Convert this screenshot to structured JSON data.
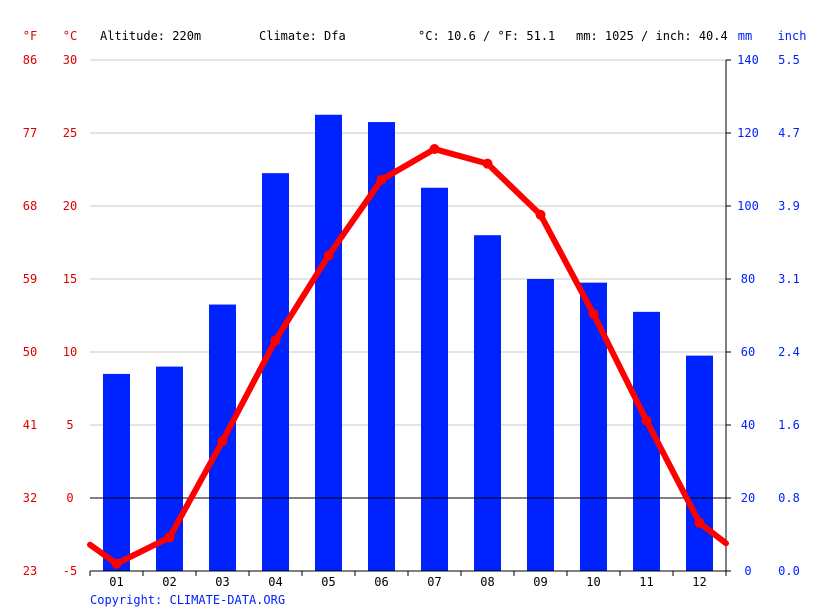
{
  "header": {
    "unit_f": "°F",
    "unit_c": "°C",
    "altitude": "Altitude: 220m",
    "climate": "Climate: Dfa",
    "temp_summary": "°C: 10.6 / °F: 51.1",
    "precip_summary": "mm: 1025 / inch: 40.4",
    "unit_mm": "mm",
    "unit_inch": "inch"
  },
  "footer": {
    "copyright": "Copyright: CLIMATE-DATA.ORG"
  },
  "colors": {
    "temperature": "#ff0000",
    "precipitation": "#0022ff",
    "left_axis_text": "#e00000",
    "right_axis_text": "#0022ff",
    "grid": "#c8c8c8",
    "zero_line": "#000000"
  },
  "chart_data": {
    "type": "bar+line",
    "categories": [
      "01",
      "02",
      "03",
      "04",
      "05",
      "06",
      "07",
      "08",
      "09",
      "10",
      "11",
      "12"
    ],
    "series": [
      {
        "kind": "bar",
        "unit": "mm",
        "axis": "right",
        "values": [
          54,
          56,
          73,
          109,
          125,
          123,
          105,
          92,
          80,
          79,
          71,
          59
        ]
      },
      {
        "kind": "line",
        "unit": "°C",
        "axis": "left",
        "values": [
          -4.5,
          -2.7,
          3.9,
          10.8,
          16.6,
          21.8,
          23.9,
          22.9,
          19.4,
          12.6,
          5.3,
          -1.7
        ],
        "edge_start": -3.2,
        "edge_end": -3.1
      }
    ],
    "left_axis_c": {
      "ticks": [
        30,
        25,
        20,
        15,
        10,
        5,
        0,
        -5
      ],
      "range": [
        -5,
        30
      ]
    },
    "left_axis_f": {
      "ticks": [
        86,
        77,
        68,
        59,
        50,
        41,
        32,
        23
      ]
    },
    "right_axis_mm": {
      "ticks": [
        140,
        120,
        100,
        80,
        60,
        40,
        20,
        0
      ],
      "range": [
        0,
        140
      ]
    },
    "right_axis_inch": {
      "ticks": [
        "5.5",
        "4.7",
        "3.9",
        "3.1",
        "2.4",
        "1.6",
        "0.8",
        "0.0"
      ]
    },
    "grid": true
  }
}
